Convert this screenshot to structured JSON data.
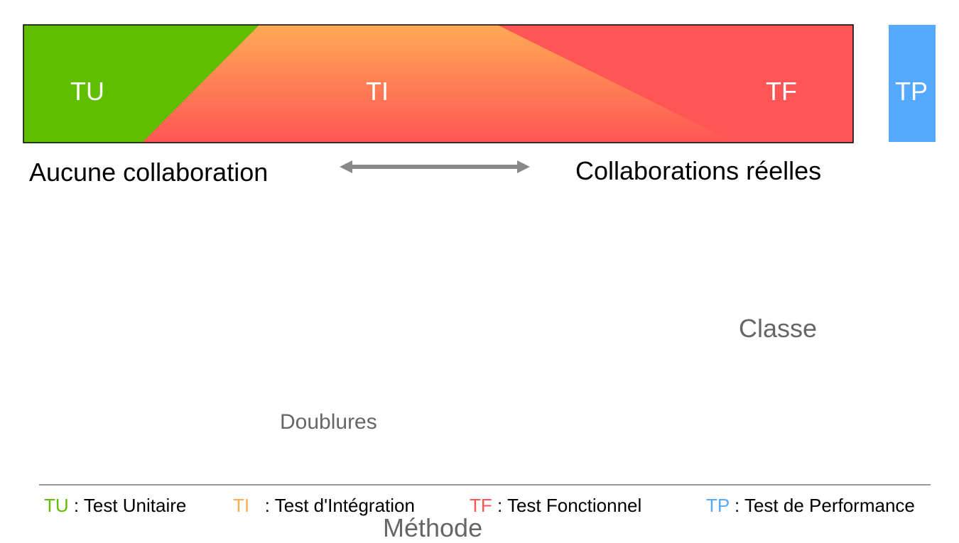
{
  "colors": {
    "tu": "#5fbe00",
    "ti_top": "#ffaa55",
    "ti_bottom": "#ff5555",
    "tf": "#ff5555",
    "tp": "#55aaff",
    "arrow": "#888888",
    "divider": "#999999",
    "grey_text": "#666666"
  },
  "bands": {
    "tu": "TU",
    "ti": "TI",
    "tf": "TF",
    "tp": "TP"
  },
  "captions": {
    "left": "Aucune collaboration",
    "right": "Collaborations réelles"
  },
  "labels": {
    "classe": "Classe",
    "doublures": "Doublures",
    "methode": "Méthode"
  },
  "legend": [
    {
      "abbr": "TU",
      "sep": " : ",
      "text": "Test Unitaire",
      "color": "#5fbe00"
    },
    {
      "abbr": "TI",
      "sep": "   : ",
      "text": "Test d'Intégration",
      "color": "#ffaa55"
    },
    {
      "abbr": "TF",
      "sep": " : ",
      "text": "Test Fonctionnel",
      "color": "#ff5555"
    },
    {
      "abbr": "TP",
      "sep": " : ",
      "text": "Test de Performance",
      "color": "#55aaff"
    }
  ]
}
